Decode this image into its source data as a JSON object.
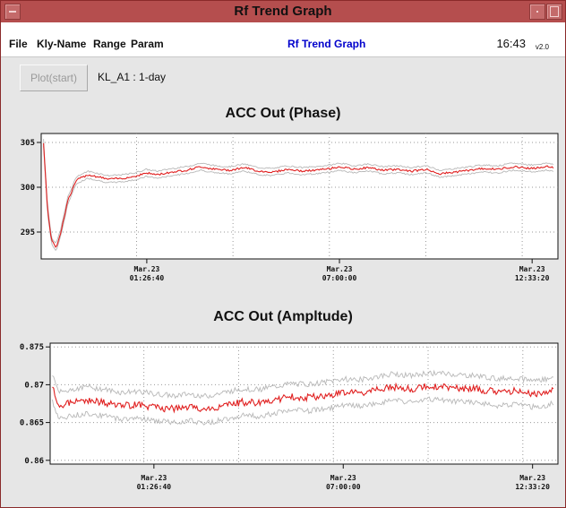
{
  "window": {
    "title": "Rf Trend Graph"
  },
  "menubar": {
    "items": [
      "File",
      "Kly-Name",
      "Range",
      "Param"
    ],
    "app_title": "Rf Trend Graph",
    "time": "16:43",
    "version": "v2.0"
  },
  "toolbar": {
    "plot_button_label": "Plot(start)",
    "plot_button_enabled": false,
    "status": "KL_A1 : 1-day"
  },
  "colors": {
    "titlebar": "#b54e4e",
    "series_mean": "#e02020",
    "series_band": "#b8b8b8",
    "app_title": "#0000cc"
  },
  "chart_data": [
    {
      "type": "line",
      "title": "ACC Out (Phase)",
      "xlabel": "",
      "ylabel": "",
      "ylim": [
        292,
        306
      ],
      "y_ticks": [
        305,
        300,
        295
      ],
      "y_tick_labels": [
        "305",
        "300",
        "295"
      ],
      "x_ticks": [
        {
          "date": "Mar.23",
          "time": "01:26:40"
        },
        {
          "date": "Mar.23",
          "time": "07:00:00"
        },
        {
          "date": "Mar.23",
          "time": "12:33:20"
        }
      ],
      "grid": true,
      "series": [
        {
          "role": "mean",
          "x": [
            "22:28",
            "22:35",
            "22:42",
            "22:50",
            "22:58",
            "23:10",
            "23:25",
            "23:45",
            "00:00",
            "00:20",
            "00:45",
            "01:05",
            "01:26",
            "01:45",
            "02:10",
            "02:35",
            "03:00",
            "03:25",
            "03:50",
            "04:15",
            "04:40",
            "05:05",
            "05:30",
            "05:55",
            "06:20",
            "06:45",
            "07:00",
            "07:25",
            "07:50",
            "08:15",
            "08:40",
            "09:05",
            "09:30",
            "09:55",
            "10:20",
            "10:45",
            "11:10",
            "11:35",
            "12:00",
            "12:33",
            "13:00",
            "13:10"
          ],
          "values": [
            305,
            297.5,
            294.0,
            293.3,
            295.0,
            298.5,
            300.8,
            301.4,
            301.2,
            300.9,
            301.0,
            301.2,
            301.6,
            301.4,
            301.7,
            301.9,
            302.3,
            302.0,
            301.9,
            302.2,
            301.8,
            301.7,
            302.0,
            301.8,
            301.9,
            302.1,
            302.3,
            302.0,
            302.2,
            301.9,
            302.0,
            301.8,
            302.0,
            301.5,
            301.7,
            301.9,
            302.1,
            302.0,
            302.3,
            302.1,
            302.3,
            302.2
          ]
        }
      ]
    },
    {
      "type": "line",
      "title": "ACC Out (Ampltude)",
      "xlabel": "",
      "ylabel": "",
      "ylim": [
        0.8595,
        0.8755
      ],
      "y_ticks": [
        0.875,
        0.87,
        0.865,
        0.86
      ],
      "y_tick_labels": [
        "0.875",
        "0.87",
        "0.865",
        "0.86"
      ],
      "x_ticks": [
        {
          "date": "Mar.23",
          "time": "01:26:40"
        },
        {
          "date": "Mar.23",
          "time": "07:00:00"
        },
        {
          "date": "Mar.23",
          "time": "12:33:20"
        }
      ],
      "grid": true,
      "series": [
        {
          "role": "mean",
          "x": [
            "22:28",
            "22:40",
            "23:00",
            "23:30",
            "00:00",
            "00:30",
            "01:00",
            "01:26",
            "02:00",
            "02:30",
            "03:00",
            "03:30",
            "04:00",
            "04:30",
            "05:00",
            "05:30",
            "06:00",
            "06:30",
            "07:00",
            "07:30",
            "08:00",
            "08:30",
            "09:00",
            "09:30",
            "10:00",
            "10:30",
            "11:00",
            "11:30",
            "12:00",
            "12:33",
            "13:00",
            "13:10"
          ],
          "values": [
            0.8695,
            0.8672,
            0.8676,
            0.868,
            0.8676,
            0.8672,
            0.8674,
            0.867,
            0.8668,
            0.867,
            0.8667,
            0.8672,
            0.8677,
            0.8676,
            0.868,
            0.8684,
            0.8683,
            0.8686,
            0.869,
            0.8689,
            0.8693,
            0.8697,
            0.8694,
            0.8698,
            0.8697,
            0.8695,
            0.8694,
            0.869,
            0.8692,
            0.8688,
            0.869,
            0.8694
          ]
        }
      ]
    }
  ]
}
